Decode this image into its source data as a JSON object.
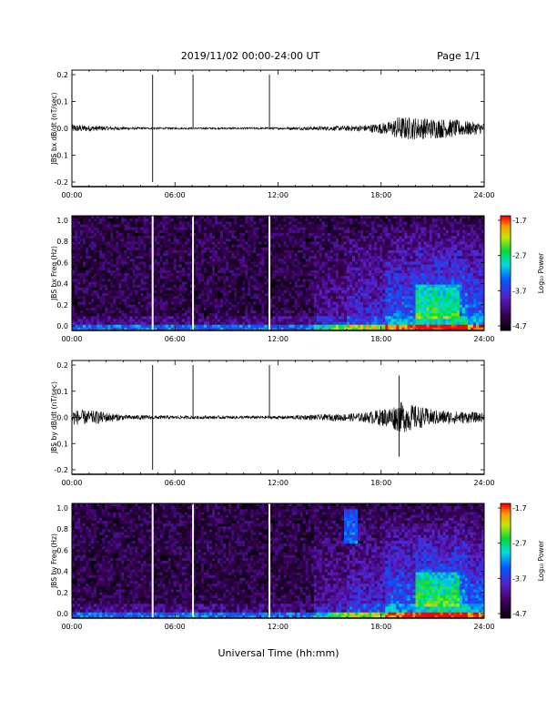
{
  "header": {
    "title": "2019/11/02  00:00-24:00 UT",
    "page": "Page 1/1"
  },
  "footer": {
    "xlabel": "Universal Time (hh:mm)"
  },
  "chart_data": [
    {
      "type": "line",
      "ylabel": "JBS bx dB/dt (nT/sec)",
      "xlim": [
        0,
        24
      ],
      "ylim": [
        -0.2,
        0.2
      ],
      "yticks": [
        "0.2",
        "0.1",
        "0.0",
        "-0.1",
        "-0.2"
      ],
      "xticks": [
        "00:00",
        "06:00",
        "12:00",
        "18:00",
        "24:00"
      ],
      "spikes": [
        {
          "x": 4.7,
          "y": 0.2,
          "y2": -0.2
        },
        {
          "x": 7.05,
          "y": 0.2,
          "y2": 0.0
        },
        {
          "x": 11.5,
          "y": 0.2,
          "y2": 0.0
        }
      ],
      "envelope": [
        {
          "x": 0,
          "amp": 0.015
        },
        {
          "x": 2,
          "amp": 0.008
        },
        {
          "x": 4,
          "amp": 0.004
        },
        {
          "x": 8,
          "amp": 0.003
        },
        {
          "x": 12,
          "amp": 0.004
        },
        {
          "x": 15,
          "amp": 0.008
        },
        {
          "x": 17,
          "amp": 0.012
        },
        {
          "x": 18.5,
          "amp": 0.025
        },
        {
          "x": 19,
          "amp": 0.045
        },
        {
          "x": 20.5,
          "amp": 0.04
        },
        {
          "x": 22,
          "amp": 0.035
        },
        {
          "x": 24,
          "amp": 0.02
        }
      ]
    },
    {
      "type": "heatmap",
      "ylabel": "JBS bx Freq (Hz)",
      "xlim": [
        0,
        24
      ],
      "ylim": [
        0,
        1.0
      ],
      "yticks": [
        "1.0",
        "0.8",
        "0.6",
        "0.4",
        "0.2",
        "0.0"
      ],
      "xticks": [
        "00:00",
        "06:00",
        "12:00",
        "18:00",
        "24:00"
      ],
      "colorbar": {
        "label": "Log₁₀ Power",
        "ticks": [
          "-1.7",
          "-2.7",
          "-3.7",
          "-4.7"
        ],
        "range": [
          -4.7,
          -1.7
        ]
      },
      "gaps": [
        4.7,
        7.05,
        11.5
      ]
    },
    {
      "type": "line",
      "ylabel": "JBS by dB/dt (nT/sec)",
      "xlim": [
        0,
        24
      ],
      "ylim": [
        -0.2,
        0.2
      ],
      "yticks": [
        "0.2",
        "0.1",
        "0.0",
        "-0.1",
        "-0.2"
      ],
      "xticks": [
        "00:00",
        "06:00",
        "12:00",
        "18:00",
        "24:00"
      ],
      "spikes": [
        {
          "x": 4.7,
          "y": 0.2,
          "y2": -0.2
        },
        {
          "x": 7.05,
          "y": 0.2,
          "y2": 0.0
        },
        {
          "x": 11.5,
          "y": 0.2,
          "y2": 0.0
        },
        {
          "x": 19.05,
          "y": 0.16,
          "y2": -0.15
        }
      ],
      "envelope": [
        {
          "x": 0,
          "amp": 0.03
        },
        {
          "x": 1.5,
          "amp": 0.025
        },
        {
          "x": 3,
          "amp": 0.01
        },
        {
          "x": 6,
          "amp": 0.006
        },
        {
          "x": 12,
          "amp": 0.006
        },
        {
          "x": 15,
          "amp": 0.012
        },
        {
          "x": 17,
          "amp": 0.018
        },
        {
          "x": 18.5,
          "amp": 0.04
        },
        {
          "x": 19.2,
          "amp": 0.06
        },
        {
          "x": 21,
          "amp": 0.03
        },
        {
          "x": 24,
          "amp": 0.018
        }
      ]
    },
    {
      "type": "heatmap",
      "ylabel": "JBS by Freq (Hz)",
      "xlim": [
        0,
        24
      ],
      "ylim": [
        0,
        1.0
      ],
      "yticks": [
        "1.0",
        "0.8",
        "0.6",
        "0.4",
        "0.2",
        "0.0"
      ],
      "xticks": [
        "00:00",
        "06:00",
        "12:00",
        "18:00",
        "24:00"
      ],
      "colorbar": {
        "label": "Log₁₀ Power",
        "ticks": [
          "-1.7",
          "-2.7",
          "-3.7",
          "-4.7"
        ],
        "range": [
          -4.7,
          -1.7
        ]
      },
      "gaps": [
        4.7,
        7.05,
        11.5
      ]
    }
  ]
}
